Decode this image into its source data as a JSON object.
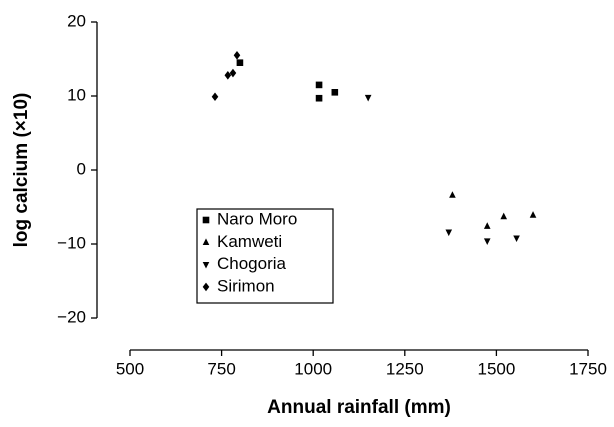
{
  "chart_data": {
    "type": "scatter",
    "xlabel": "Annual rainfall (mm)",
    "ylabel": "log calcium (×10)",
    "xlim": [
      500,
      1750
    ],
    "xticks": [
      500,
      750,
      1000,
      1250,
      1500,
      1750
    ],
    "ylim": [
      -20,
      20
    ],
    "yticks": [
      {
        "value": -20,
        "label": "−20"
      },
      {
        "value": -10,
        "label": "−10"
      },
      0,
      10,
      20
    ],
    "legend": "lower-left",
    "series": [
      {
        "name": "Naro Moro",
        "color": "#000000",
        "marker": "square",
        "x": [
          800,
          1016,
          1016,
          1059
        ],
        "values": [
          14.5,
          11.5,
          9.7,
          10.5
        ]
      },
      {
        "name": "Kamweti",
        "color": "#000000",
        "marker": "triangle-up",
        "x": [
          1380,
          1475,
          1520,
          1600
        ],
        "values": [
          -3.4,
          -7.6,
          -6.3,
          -6.1
        ]
      },
      {
        "name": "Chogoria",
        "color": "#000000",
        "marker": "triangle-down",
        "x": [
          1150,
          1370,
          1475,
          1555
        ],
        "values": [
          9.8,
          -8.4,
          -9.6,
          -9.2
        ]
      },
      {
        "name": "Sirimon",
        "color": "#000000",
        "marker": "diamond",
        "x": [
          732,
          767,
          781,
          792
        ],
        "values": [
          9.9,
          12.8,
          13.1,
          15.5
        ]
      }
    ]
  }
}
